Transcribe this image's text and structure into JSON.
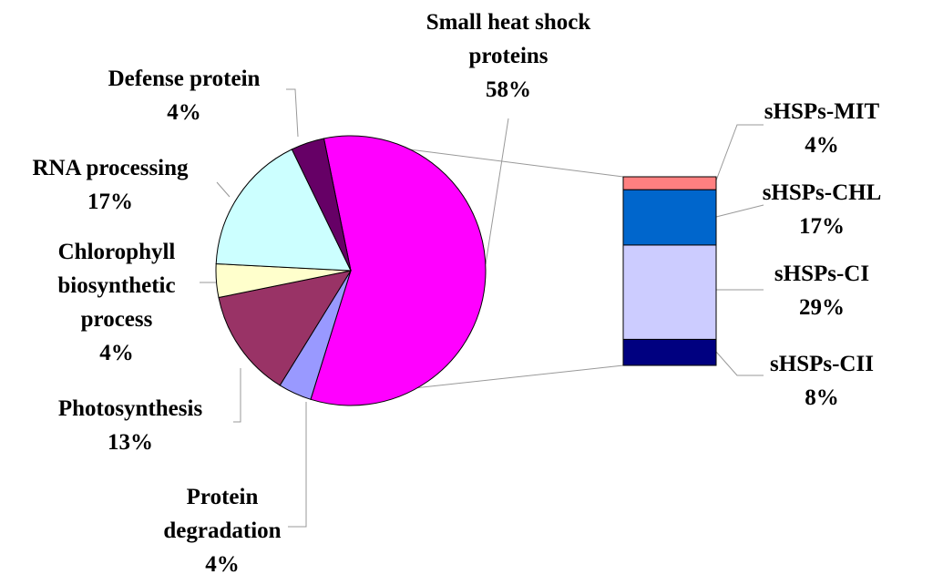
{
  "chart_data": [
    {
      "type": "pie",
      "title": "",
      "slices": [
        {
          "name": "Small heat shock proteins",
          "label_lines": [
            "Small heat shock",
            "proteins",
            "58%"
          ],
          "value": 58,
          "color": "#ff00ff"
        },
        {
          "name": "Protein degradation",
          "label_lines": [
            "Protein",
            "degradation",
            "4%"
          ],
          "value": 4,
          "color": "#9999ff"
        },
        {
          "name": "Photosynthesis",
          "label_lines": [
            "Photosynthesis",
            "13%"
          ],
          "value": 13,
          "color": "#993366"
        },
        {
          "name": "Chlorophyll biosynthetic process",
          "label_lines": [
            "Chlorophyll",
            "biosynthetic",
            "process",
            "4%"
          ],
          "value": 4,
          "color": "#ffffcc"
        },
        {
          "name": "RNA processing",
          "label_lines": [
            "RNA processing",
            "17%"
          ],
          "value": 17,
          "color": "#ccffff"
        },
        {
          "name": "Defense protein",
          "label_lines": [
            "Defense protein",
            "4%"
          ],
          "value": 4,
          "color": "#660066"
        }
      ]
    },
    {
      "type": "stacked-bar",
      "title": "",
      "segments": [
        {
          "name": "sHSPs-MIT",
          "label_lines": [
            "sHSPs-MIT",
            "4%"
          ],
          "value": 4,
          "color": "#ff8080"
        },
        {
          "name": "sHSPs-CHL",
          "label_lines": [
            "sHSPs-CHL",
            "17%"
          ],
          "value": 17,
          "color": "#0066cc"
        },
        {
          "name": "sHSPs-CI",
          "label_lines": [
            "sHSPs-CI",
            "29%"
          ],
          "value": 29,
          "color": "#ccccff"
        },
        {
          "name": "sHSPs-CII",
          "label_lines": [
            "sHSPs-CII",
            "8%"
          ],
          "value": 8,
          "color": "#000080"
        }
      ]
    }
  ]
}
